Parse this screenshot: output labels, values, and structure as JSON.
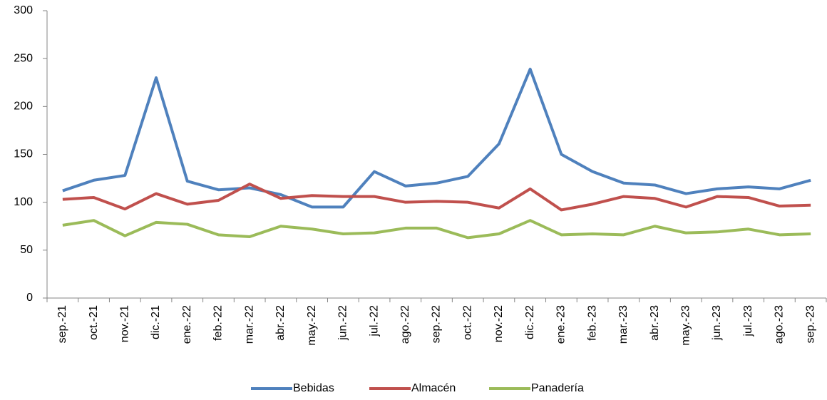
{
  "chart_data": {
    "type": "line",
    "categories": [
      "sep.-21",
      "oct.-21",
      "nov.-21",
      "dic.-21",
      "ene.-22",
      "feb.-22",
      "mar.-22",
      "abr.-22",
      "may.-22",
      "jun.-22",
      "jul.-22",
      "ago.-22",
      "sep.-22",
      "oct.-22",
      "nov.-22",
      "dic.-22",
      "ene.-23",
      "feb.-23",
      "mar.-23",
      "abr.-23",
      "may.-23",
      "jun.-23",
      "jul.-23",
      "ago.-23",
      "sep.-23"
    ],
    "series": [
      {
        "name": "Bebidas",
        "color": "#4f81bd",
        "values": [
          112,
          123,
          128,
          230,
          122,
          113,
          115,
          108,
          95,
          95,
          132,
          117,
          120,
          127,
          161,
          239,
          150,
          132,
          120,
          118,
          109,
          114,
          116,
          114,
          123
        ]
      },
      {
        "name": "Almacén",
        "color": "#c0504d",
        "values": [
          103,
          105,
          93,
          109,
          98,
          102,
          119,
          104,
          107,
          106,
          106,
          100,
          101,
          100,
          94,
          114,
          92,
          98,
          106,
          104,
          95,
          106,
          105,
          96,
          97
        ]
      },
      {
        "name": "Panadería",
        "color": "#9bbb59",
        "values": [
          76,
          81,
          65,
          79,
          77,
          66,
          64,
          75,
          72,
          67,
          68,
          73,
          73,
          63,
          67,
          81,
          66,
          67,
          66,
          75,
          68,
          69,
          72,
          66,
          67
        ]
      }
    ],
    "ylim": [
      0,
      300
    ],
    "yticks": [
      0,
      50,
      100,
      150,
      200,
      250,
      300
    ],
    "grid": false,
    "legend": "bottom"
  }
}
